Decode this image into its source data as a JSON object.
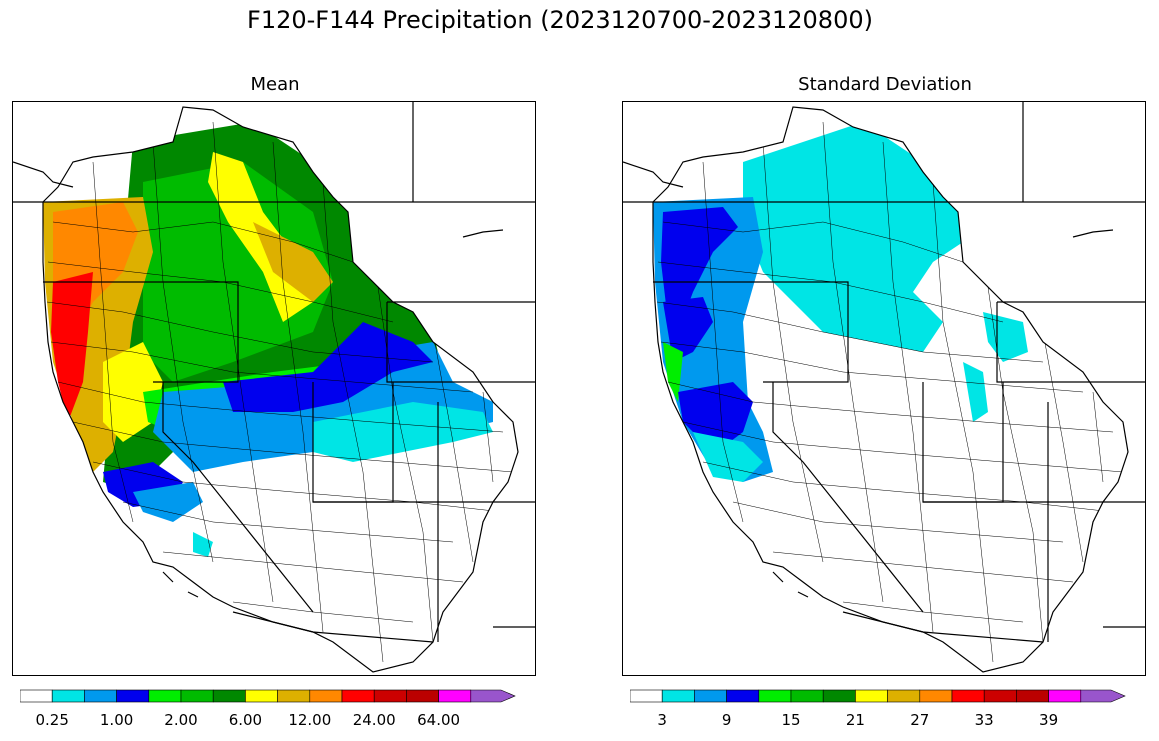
{
  "figure": {
    "title": "F120-F144 Precipitation (2023120700-2023120800)"
  },
  "panels": [
    {
      "title": "Mean",
      "colorbar": {
        "colors": [
          "#ffffff",
          "#00e5e5",
          "#0099ee",
          "#0000ee",
          "#00ee00",
          "#00bb00",
          "#008800",
          "#ffff00",
          "#ddb000",
          "#ff8800",
          "#ff0000",
          "#cc0000",
          "#bb0000",
          "#ff00ff",
          "#9955cc"
        ],
        "tick_labels": [
          "0.25",
          "1.00",
          "2.00",
          "6.00",
          "12.00",
          "24.00",
          "64.00"
        ]
      }
    },
    {
      "title": "Standard Deviation",
      "colorbar": {
        "colors": [
          "#ffffff",
          "#00e5e5",
          "#0099ee",
          "#0000ee",
          "#00ee00",
          "#00bb00",
          "#008800",
          "#ffff00",
          "#ddb000",
          "#ff8800",
          "#ff0000",
          "#cc0000",
          "#bb0000",
          "#ff00ff",
          "#9955cc"
        ],
        "tick_labels": [
          "3",
          "9",
          "15",
          "21",
          "27",
          "33",
          "39"
        ]
      }
    }
  ]
}
